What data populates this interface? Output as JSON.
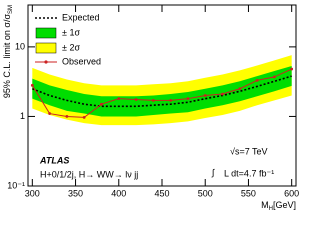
{
  "chart_data": {
    "type": "limit-bands",
    "x_label": "M",
    "x_label_sub": "H",
    "x_label_unit": "[GeV]",
    "y_label": "95% C.L. limit on σ/σ",
    "y_label_sub": "SM",
    "experiment": "ATLAS",
    "channel": "H+0/1/2j, H→ WW→ lν jj",
    "energy": "√s=7 TeV",
    "lumi_symbol": "∫",
    "lumi": "L dt=4.7 fb⁻¹",
    "x": [
      300,
      320,
      340,
      360,
      380,
      400,
      420,
      440,
      460,
      480,
      500,
      520,
      540,
      560,
      580,
      600
    ],
    "series": [
      {
        "name": "Expected",
        "color": "#000000",
        "values": [
          2.5,
          2.0,
          1.7,
          1.5,
          1.4,
          1.4,
          1.4,
          1.45,
          1.5,
          1.6,
          1.8,
          2.0,
          2.3,
          2.7,
          3.2,
          3.8
        ]
      },
      {
        "name": "± 1σ",
        "color": "#00dd00",
        "lower": [
          1.8,
          1.45,
          1.2,
          1.1,
          1.0,
          1.0,
          1.0,
          1.05,
          1.1,
          1.15,
          1.3,
          1.45,
          1.65,
          1.95,
          2.3,
          2.75
        ],
        "upper": [
          3.5,
          2.8,
          2.4,
          2.1,
          1.95,
          1.95,
          1.95,
          2.0,
          2.1,
          2.25,
          2.5,
          2.8,
          3.2,
          3.8,
          4.5,
          5.3
        ]
      },
      {
        "name": "± 2σ",
        "color": "#ffff00",
        "lower": [
          1.3,
          1.05,
          0.9,
          0.8,
          0.75,
          0.75,
          0.75,
          0.77,
          0.8,
          0.85,
          0.95,
          1.05,
          1.2,
          1.45,
          1.7,
          2.0
        ],
        "upper": [
          5.0,
          4.0,
          3.4,
          3.0,
          2.8,
          2.8,
          2.8,
          2.9,
          3.0,
          3.2,
          3.6,
          4.0,
          4.6,
          5.4,
          6.4,
          7.6
        ]
      },
      {
        "name": "Observed",
        "color": "#cc2222",
        "values": [
          2.8,
          1.1,
          1.0,
          0.97,
          1.5,
          1.8,
          1.75,
          1.7,
          1.7,
          1.8,
          2.0,
          2.1,
          2.5,
          3.3,
          3.7,
          4.8
        ]
      }
    ],
    "xlim": [
      295,
      605
    ],
    "xticks": [
      300,
      350,
      400,
      450,
      500,
      550,
      600
    ],
    "ylim": [
      0.1,
      40
    ],
    "log_y": true,
    "yticks": [
      {
        "value": 0.1,
        "label": "10⁻¹"
      },
      1,
      10
    ],
    "legend": "top-left"
  }
}
